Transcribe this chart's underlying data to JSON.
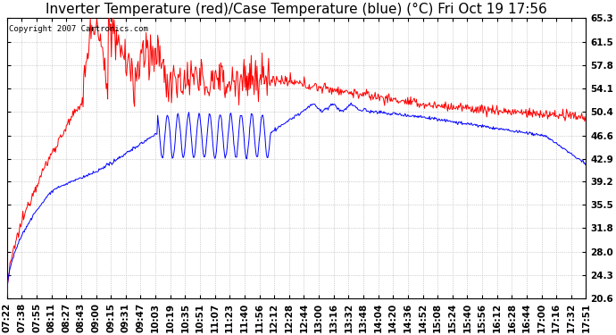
{
  "title": "Inverter Temperature (red)/Case Temperature (blue) (°C) Fri Oct 19 17:56",
  "copyright": "Copyright 2007 Cartronics.com",
  "yticks": [
    20.6,
    24.3,
    28.0,
    31.8,
    35.5,
    39.2,
    42.9,
    46.6,
    50.4,
    54.1,
    57.8,
    61.5,
    65.3
  ],
  "ylim": [
    20.6,
    65.3
  ],
  "xtick_labels": [
    "07:22",
    "07:38",
    "07:55",
    "08:11",
    "08:27",
    "08:43",
    "09:00",
    "09:15",
    "09:31",
    "09:47",
    "10:03",
    "10:19",
    "10:35",
    "10:51",
    "11:07",
    "11:23",
    "11:40",
    "11:56",
    "12:12",
    "12:28",
    "12:44",
    "13:00",
    "13:16",
    "13:32",
    "13:48",
    "14:04",
    "14:20",
    "14:36",
    "14:52",
    "15:08",
    "15:24",
    "15:40",
    "15:56",
    "16:12",
    "16:28",
    "16:44",
    "17:00",
    "17:16",
    "17:32",
    "17:51"
  ],
  "bg_color": "#ffffff",
  "plot_bg_color": "#ffffff",
  "grid_color": "#aaaaaa",
  "red_color": "#ff0000",
  "blue_color": "#0000ff",
  "title_fontsize": 11,
  "tick_fontsize": 7.5
}
